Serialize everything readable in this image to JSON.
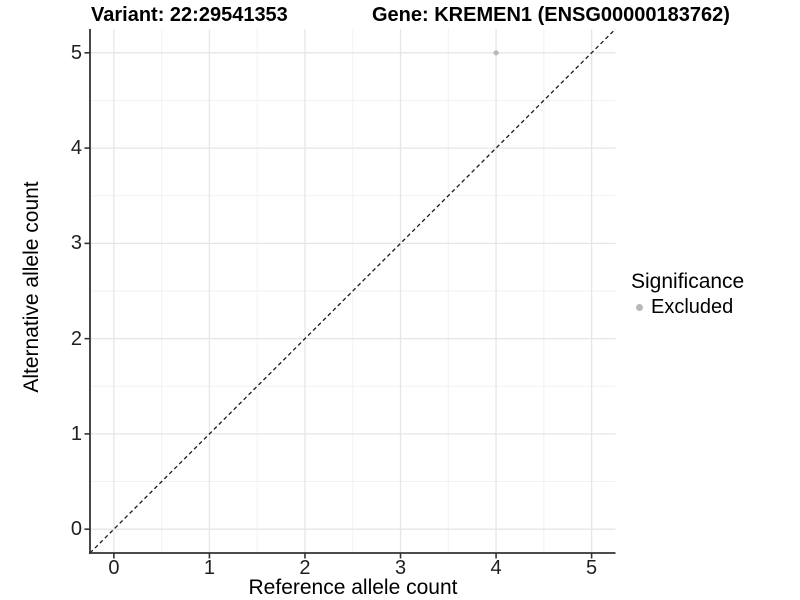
{
  "chart_data": {
    "type": "scatter",
    "titles": [
      "Variant: 22:29541353",
      "Gene: KREMEN1 (ENSG00000183762)"
    ],
    "xlabel": "Reference allele count",
    "ylabel": "Alternative allele count",
    "xlim": [
      -0.25,
      5.25
    ],
    "ylim": [
      -0.25,
      5.25
    ],
    "x_ticks": [
      0,
      1,
      2,
      3,
      4,
      5
    ],
    "y_ticks": [
      0,
      1,
      2,
      3,
      4,
      5
    ],
    "x_minor": [
      0.5,
      1.5,
      2.5,
      3.5,
      4.5
    ],
    "y_minor": [
      0.5,
      1.5,
      2.5,
      3.5,
      4.5
    ],
    "grid": true,
    "series": [
      {
        "name": "Excluded",
        "color": "#b8b8b8",
        "point_radius": 2.6,
        "points": [
          {
            "x": 4,
            "y": 5
          }
        ]
      }
    ],
    "reference_line": {
      "kind": "identity",
      "x1": -0.25,
      "y1": -0.25,
      "x2": 5.25,
      "y2": 5.25,
      "style": "dashed",
      "color": "#1a1a1a"
    },
    "legend": {
      "title": "Significance",
      "position": "right",
      "items": [
        {
          "label": "Excluded",
          "color": "#b8b8b8"
        }
      ]
    },
    "colors": {
      "grid_major": "#e6e6e6",
      "grid_minor": "#f2f2f2",
      "axis_line": "#333333"
    }
  }
}
